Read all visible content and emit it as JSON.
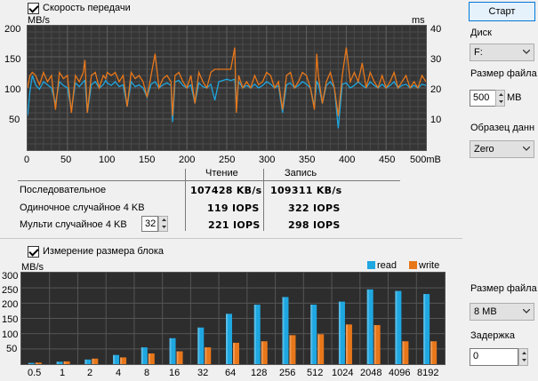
{
  "speed_section": {
    "checkbox_label": "Скорость передачи",
    "checked": true
  },
  "chart1": {
    "left_unit": "MB/s",
    "right_unit": "ms",
    "y_left_ticks": [
      "200",
      "150",
      "100",
      "50"
    ],
    "y_right_ticks": [
      "40",
      "30",
      "20",
      "10"
    ],
    "x_ticks": [
      "0",
      "50",
      "100",
      "150",
      "200",
      "250",
      "300",
      "350",
      "400",
      "450",
      "500mB"
    ]
  },
  "chart_data": [
    {
      "type": "line",
      "title": "",
      "xlabel": "",
      "ylabel": "MB/s",
      "y2label": "ms",
      "xlim": [
        0,
        500
      ],
      "ylim": [
        0,
        200
      ],
      "y2lim": [
        0,
        40
      ],
      "grid": true,
      "series": [
        {
          "name": "",
          "color": "#1ea7e1",
          "axis": "left",
          "x": [
            0,
            3,
            6,
            10,
            15,
            20,
            25,
            30,
            35,
            40,
            45,
            50,
            55,
            60,
            65,
            70,
            72,
            75,
            80,
            85,
            90,
            95,
            98,
            100,
            105,
            110,
            115,
            120,
            125,
            130,
            135,
            140,
            145,
            150,
            155,
            160,
            165,
            170,
            175,
            180,
            182,
            185,
            190,
            195,
            200,
            205,
            210,
            215,
            220,
            225,
            230,
            235,
            240,
            245,
            250,
            255,
            260,
            262,
            265,
            270,
            275,
            280,
            285,
            290,
            295,
            300,
            305,
            310,
            315,
            320,
            325,
            330,
            335,
            340,
            345,
            350,
            355,
            360,
            363,
            365,
            370,
            375,
            380,
            385,
            390,
            395,
            400,
            405,
            410,
            415,
            420,
            425,
            430,
            435,
            440,
            445,
            450,
            455,
            460,
            465,
            470,
            475,
            480,
            485,
            490,
            495,
            500
          ],
          "values": [
            55,
            95,
            120,
            105,
            98,
            110,
            105,
            100,
            75,
            110,
            104,
            100,
            65,
            108,
            102,
            110,
            112,
            60,
            105,
            110,
            100,
            105,
            112,
            108,
            104,
            110,
            102,
            105,
            70,
            110,
            102,
            105,
            100,
            85,
            106,
            110,
            100,
            105,
            108,
            104,
            45,
            110,
            112,
            104,
            100,
            105,
            75,
            108,
            102,
            100,
            106,
            80,
            110,
            112,
            114,
            112,
            114,
            70,
            110,
            100,
            104,
            100,
            106,
            100,
            104,
            110,
            106,
            100,
            104,
            60,
            105,
            108,
            100,
            104,
            110,
            106,
            100,
            70,
            110,
            106,
            75,
            104,
            110,
            100,
            35,
            106,
            108,
            100,
            104,
            110,
            104,
            100,
            110,
            104,
            100,
            106,
            100,
            104,
            110,
            100,
            104,
            106,
            100,
            104,
            100,
            106,
            104
          ]
        },
        {
          "name": "",
          "color": "#e8771a",
          "axis": "right",
          "x": [
            0,
            3,
            6,
            10,
            15,
            20,
            25,
            30,
            35,
            40,
            45,
            50,
            55,
            60,
            65,
            70,
            72,
            75,
            80,
            85,
            90,
            95,
            98,
            100,
            105,
            110,
            115,
            120,
            125,
            130,
            135,
            140,
            145,
            150,
            155,
            160,
            165,
            170,
            175,
            180,
            182,
            185,
            190,
            195,
            200,
            205,
            210,
            215,
            220,
            225,
            230,
            235,
            240,
            245,
            250,
            255,
            260,
            262,
            265,
            270,
            275,
            280,
            285,
            290,
            295,
            300,
            305,
            310,
            315,
            320,
            325,
            330,
            335,
            340,
            345,
            350,
            355,
            360,
            363,
            365,
            370,
            375,
            380,
            385,
            390,
            395,
            400,
            405,
            410,
            415,
            420,
            425,
            430,
            435,
            440,
            445,
            450,
            455,
            460,
            465,
            470,
            475,
            480,
            485,
            490,
            495,
            500
          ],
          "values": [
            20,
            24,
            25,
            24,
            21,
            25,
            22,
            24,
            13,
            25,
            23,
            24,
            12,
            24,
            22,
            25,
            29,
            12,
            24,
            25,
            20,
            24,
            23,
            25,
            24,
            25,
            22,
            24,
            14,
            25,
            23,
            24,
            22,
            17,
            24,
            31,
            20,
            23,
            24,
            22,
            11,
            24,
            25,
            22,
            20,
            24,
            15,
            25,
            22,
            20,
            25,
            26,
            26,
            26,
            26,
            26,
            33,
            12,
            24,
            20,
            22,
            20,
            24,
            21,
            22,
            25,
            24,
            20,
            22,
            13,
            24,
            25,
            20,
            22,
            25,
            24,
            20,
            13,
            31,
            24,
            15,
            22,
            25,
            20,
            11,
            24,
            33,
            22,
            25,
            22,
            28,
            20,
            25,
            22,
            20,
            24,
            20,
            22,
            25,
            20,
            22,
            24,
            20,
            22,
            20,
            24,
            22
          ]
        }
      ]
    },
    {
      "type": "bar",
      "title": "",
      "xlabel": "",
      "ylabel": "MB/s",
      "ylim": [
        0,
        300
      ],
      "grid": true,
      "legend": "top-right",
      "categories": [
        "0.5",
        "1",
        "2",
        "4",
        "8",
        "16",
        "32",
        "64",
        "128",
        "256",
        "512",
        "1024",
        "2048",
        "4096",
        "8192"
      ],
      "series": [
        {
          "name": "read",
          "color": "#1ea7e1",
          "values": [
            4,
            8,
            15,
            30,
            55,
            85,
            120,
            165,
            195,
            220,
            195,
            205,
            245,
            240,
            230
          ]
        },
        {
          "name": "write",
          "color": "#e8771a",
          "values": [
            5,
            9,
            18,
            22,
            35,
            42,
            55,
            70,
            75,
            95,
            98,
            130,
            128,
            75,
            75
          ]
        }
      ]
    }
  ],
  "results": {
    "col_read": "Чтение",
    "col_write": "Запись",
    "rows": [
      {
        "label": "Последовательное",
        "read": "107428 KB/s",
        "write": "109311 KB/s"
      },
      {
        "label": "Одиночное случайное 4 KB",
        "read": "119 IOPS",
        "write": "322 IOPS"
      },
      {
        "label": "Мульти случайное 4 KB",
        "read": "221 IOPS",
        "write": "298 IOPS",
        "queue_value": "32"
      }
    ]
  },
  "block_section": {
    "checkbox_label": "Измерение размера блока",
    "checked": true
  },
  "chart2": {
    "unit": "MB/s",
    "y_ticks": [
      "300",
      "250",
      "200",
      "150",
      "100",
      "50"
    ],
    "legend": [
      {
        "label": "read"
      },
      {
        "label": "write"
      }
    ]
  },
  "sidebar": {
    "start_label": "Старт",
    "disk_label": "Диск",
    "disk_value": "F:",
    "filesize_label": "Размер файла",
    "filesize_value": "500",
    "filesize_unit": "MB",
    "pattern_label": "Образец данн",
    "pattern_value": "Zero",
    "filesize2_label": "Размер файла",
    "filesize2_value": "8 MB",
    "delay_label": "Задержка",
    "delay_value": "0"
  }
}
